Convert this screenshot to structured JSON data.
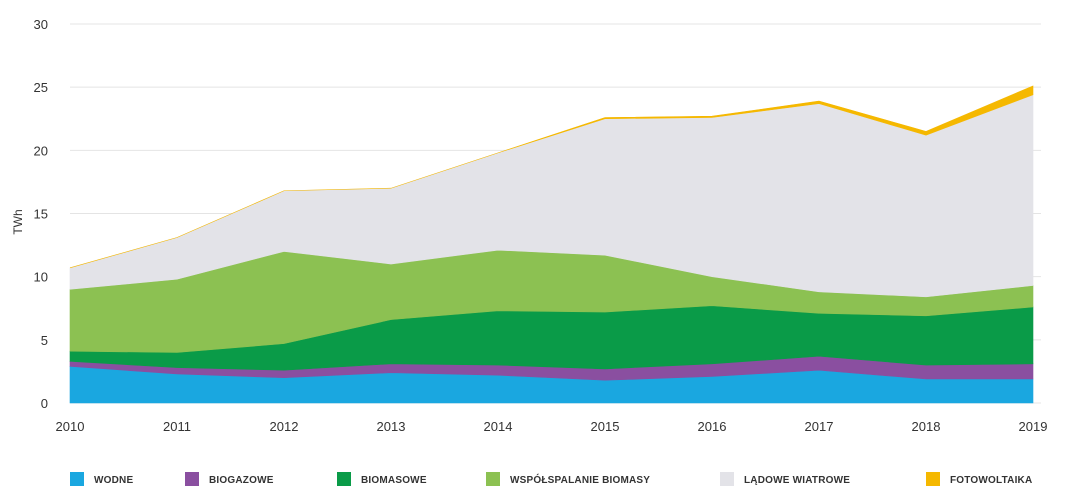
{
  "chart_data": {
    "type": "area",
    "stacked": true,
    "x": [
      2010,
      2011,
      2012,
      2013,
      2014,
      2015,
      2016,
      2017,
      2018,
      2019
    ],
    "xticks": [
      "2010",
      "2011",
      "2012",
      "2013",
      "2014",
      "2015",
      "2016",
      "2017",
      "2018",
      "2019"
    ],
    "ylabel": "TWh",
    "ylim": [
      0,
      30
    ],
    "yticks": [
      "0",
      "5",
      "10",
      "15",
      "20",
      "25",
      "30"
    ],
    "grid": true,
    "legend_position": "bottom",
    "series": [
      {
        "name": "WODNE",
        "color": "#1aa7e0",
        "values": [
          2.9,
          2.3,
          2.0,
          2.4,
          2.2,
          1.8,
          2.1,
          2.6,
          1.9,
          1.9
        ]
      },
      {
        "name": "BIOGAZOWE",
        "color": "#8a4fa0",
        "values": [
          0.4,
          0.5,
          0.6,
          0.7,
          0.8,
          0.9,
          1.0,
          1.1,
          1.1,
          1.2
        ]
      },
      {
        "name": "BIOMASOWE",
        "color": "#0a9b48",
        "values": [
          0.8,
          1.2,
          2.1,
          3.5,
          4.3,
          4.5,
          4.6,
          3.4,
          3.9,
          4.5
        ]
      },
      {
        "name": "WSPÓŁSPALANIE BIOMASY",
        "color": "#8cc152",
        "values": [
          4.9,
          5.8,
          7.3,
          4.4,
          4.8,
          4.5,
          2.3,
          1.7,
          1.5,
          1.7
        ]
      },
      {
        "name": "LĄDOWE WIATROWE",
        "color": "#e3e3e8",
        "values": [
          1.7,
          3.3,
          4.8,
          6.0,
          7.7,
          10.8,
          12.6,
          14.9,
          12.8,
          15.1
        ]
      },
      {
        "name": "FOTOWOLTAIKA",
        "color": "#f5b800",
        "values": [
          0.0,
          0.0,
          0.0,
          0.0,
          0.0,
          0.1,
          0.1,
          0.2,
          0.3,
          0.7
        ]
      }
    ]
  }
}
